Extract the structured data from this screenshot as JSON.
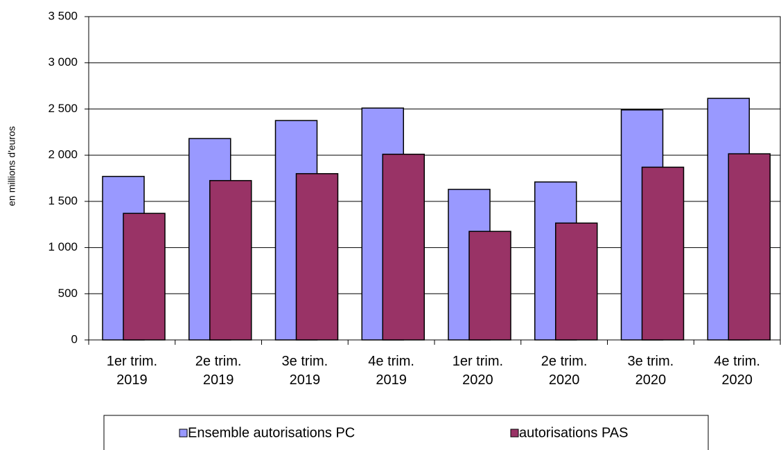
{
  "chart_data": {
    "type": "bar",
    "y_label": "en millions d'euros",
    "categories": [
      "1er trim. 2019",
      "2e trim. 2019",
      "3e trim. 2019",
      "4e trim. 2019",
      "1er trim. 2020",
      "2e trim. 2020",
      "3e trim. 2020",
      "4e trim. 2020"
    ],
    "series": [
      {
        "name": "Ensemble autorisations PC",
        "color": "#9999ff",
        "values": [
          1770,
          2180,
          2375,
          2510,
          1630,
          1710,
          2490,
          2615
        ]
      },
      {
        "name": "autorisations PAS",
        "color": "#993366",
        "values": [
          1370,
          1725,
          1800,
          2010,
          1175,
          1265,
          1870,
          2015
        ]
      }
    ],
    "ylim": [
      0,
      3500
    ],
    "yticks": [
      0,
      500,
      {
        "value": 1000,
        "label": "1 000"
      },
      {
        "value": 1500,
        "label": "1 500"
      },
      {
        "value": 2000,
        "label": "2 000"
      },
      {
        "value": 2500,
        "label": "2 500"
      },
      {
        "value": 3000,
        "label": "3 000"
      },
      {
        "value": 3500,
        "label": "3 500"
      }
    ],
    "grid": true,
    "legend": "bottom"
  }
}
